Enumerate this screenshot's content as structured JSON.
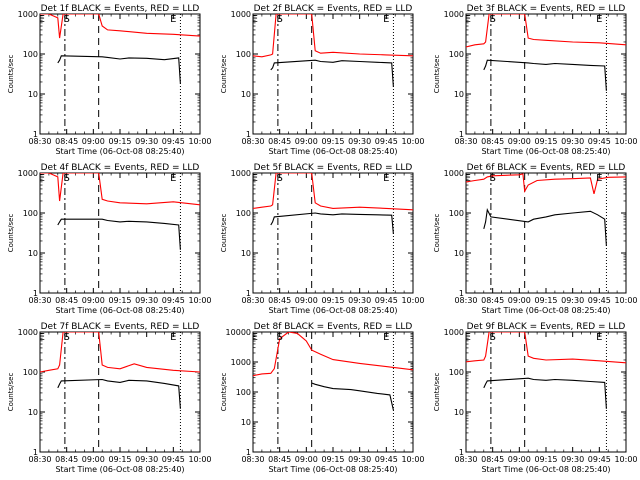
{
  "chart_data": [
    {
      "type": "line",
      "title": "Det 1f BLACK = Events, RED = LLD",
      "xlabel": "Start Time (06-Oct-08 08:25:40)",
      "ylabel": "Counts/sec",
      "yscale": "log",
      "ylim": [
        1,
        1000
      ],
      "xlim": [
        "08:30",
        "10:00"
      ],
      "x_ticks": [
        "08:30",
        "08:45",
        "09:00",
        "09:15",
        "09:30",
        "09:45",
        "10:00"
      ],
      "y_ticks": [
        "1",
        "10",
        "100",
        "1000"
      ],
      "markers": {
        "E1": "08:31",
        "S": "08:45",
        "E2": "09:45"
      },
      "saa_interval": [
        "08:44",
        "09:03"
      ],
      "end_time": "09:49",
      "series": [
        {
          "color": "#ff0000",
          "x": [
            "08:27",
            "08:30",
            "08:35",
            "08:40",
            "08:41",
            "08:43",
            "09:03",
            "09:05",
            "09:08",
            "09:15",
            "09:30",
            "09:45",
            "10:00"
          ],
          "y": [
            1000,
            1000,
            1000,
            800,
            250,
            1000,
            1000,
            500,
            400,
            380,
            330,
            310,
            280
          ]
        },
        {
          "color": "#000000",
          "x": [
            "08:40",
            "08:41",
            "08:42",
            "09:05",
            "09:08",
            "09:15",
            "09:20",
            "09:30",
            "09:40",
            "09:48",
            "09:49"
          ],
          "y": [
            60,
            70,
            90,
            85,
            82,
            75,
            80,
            78,
            72,
            80,
            18
          ]
        }
      ]
    },
    {
      "type": "line",
      "title": "Det 2f BLACK = Events, RED = LLD",
      "xlabel": "Start Time (06-Oct-08 08:25:40)",
      "ylabel": "Counts/sec",
      "yscale": "log",
      "ylim": [
        1,
        1000
      ],
      "xlim": [
        "08:30",
        "10:00"
      ],
      "x_ticks": [
        "08:30",
        "08:45",
        "09:00",
        "09:15",
        "09:30",
        "09:45",
        "10:00"
      ],
      "y_ticks": [
        "1",
        "10",
        "100",
        "1000"
      ],
      "markers": {
        "E1": "08:31",
        "S": "08:45",
        "E2": "09:45"
      },
      "saa_interval": [
        "08:44",
        "09:03"
      ],
      "end_time": "09:49",
      "series": [
        {
          "color": "#ff0000",
          "x": [
            "08:27",
            "08:30",
            "08:35",
            "08:40",
            "08:41",
            "08:43",
            "09:03",
            "09:05",
            "09:08",
            "09:15",
            "09:30",
            "09:45",
            "10:00"
          ],
          "y": [
            90,
            90,
            85,
            95,
            100,
            1000,
            1000,
            120,
            105,
            110,
            100,
            95,
            90
          ]
        },
        {
          "color": "#000000",
          "x": [
            "08:40",
            "08:41",
            "08:42",
            "09:05",
            "09:08",
            "09:15",
            "09:20",
            "09:30",
            "09:40",
            "09:48",
            "09:49"
          ],
          "y": [
            40,
            45,
            60,
            70,
            65,
            62,
            68,
            65,
            62,
            60,
            15
          ]
        }
      ]
    },
    {
      "type": "line",
      "title": "Det 3f BLACK = Events, RED = LLD",
      "xlabel": "Start Time (06-Oct-08 08:25:40)",
      "ylabel": "Counts/sec",
      "yscale": "log",
      "ylim": [
        1,
        1000
      ],
      "xlim": [
        "08:30",
        "10:00"
      ],
      "x_ticks": [
        "08:30",
        "08:45",
        "09:00",
        "09:15",
        "09:30",
        "09:45",
        "10:00"
      ],
      "y_ticks": [
        "1",
        "10",
        "100",
        "1000"
      ],
      "markers": {
        "E1": "08:31",
        "S": "08:45",
        "E2": "09:45"
      },
      "saa_interval": [
        "08:44",
        "09:03"
      ],
      "end_time": "09:49",
      "series": [
        {
          "color": "#ff0000",
          "x": [
            "08:27",
            "08:30",
            "08:35",
            "08:40",
            "08:41",
            "08:43",
            "09:03",
            "09:05",
            "09:08",
            "09:15",
            "09:30",
            "09:45",
            "10:00"
          ],
          "y": [
            150,
            150,
            170,
            180,
            200,
            1000,
            1000,
            250,
            230,
            220,
            200,
            190,
            170
          ]
        },
        {
          "color": "#000000",
          "x": [
            "08:40",
            "08:41",
            "08:42",
            "09:05",
            "09:08",
            "09:15",
            "09:20",
            "09:30",
            "09:40",
            "09:48",
            "09:49"
          ],
          "y": [
            40,
            50,
            70,
            60,
            58,
            55,
            58,
            55,
            52,
            50,
            12
          ]
        }
      ]
    },
    {
      "type": "line",
      "title": "Det 4f BLACK = Events, RED = LLD",
      "xlabel": "Start Time (06-Oct-08 08:25:40)",
      "ylabel": "Counts/sec",
      "yscale": "log",
      "ylim": [
        1,
        1000
      ],
      "xlim": [
        "08:30",
        "10:00"
      ],
      "x_ticks": [
        "08:30",
        "08:45",
        "09:00",
        "09:15",
        "09:30",
        "09:45",
        "10:00"
      ],
      "y_ticks": [
        "1",
        "10",
        "100",
        "1000"
      ],
      "markers": {
        "E1": "08:31",
        "S": "08:45",
        "E2": "09:45"
      },
      "saa_interval": [
        "08:44",
        "09:03"
      ],
      "end_time": "09:49",
      "series": [
        {
          "color": "#ff0000",
          "x": [
            "08:27",
            "08:30",
            "08:35",
            "08:40",
            "08:41",
            "08:43",
            "09:03",
            "09:05",
            "09:08",
            "09:15",
            "09:30",
            "09:45",
            "10:00"
          ],
          "y": [
            1000,
            1000,
            1000,
            800,
            200,
            1000,
            1000,
            220,
            200,
            180,
            170,
            190,
            160
          ]
        },
        {
          "color": "#000000",
          "x": [
            "08:40",
            "08:41",
            "08:42",
            "09:05",
            "09:08",
            "09:15",
            "09:20",
            "09:30",
            "09:40",
            "09:48",
            "09:49"
          ],
          "y": [
            50,
            60,
            70,
            70,
            65,
            60,
            62,
            60,
            55,
            50,
            12
          ]
        }
      ]
    },
    {
      "type": "line",
      "title": "Det 5f BLACK = Events, RED = LLD",
      "xlabel": "Start Time (06-Oct-08 08:25:40)",
      "ylabel": "Counts/sec",
      "yscale": "log",
      "ylim": [
        1,
        1000
      ],
      "xlim": [
        "08:30",
        "10:00"
      ],
      "x_ticks": [
        "08:30",
        "08:45",
        "09:00",
        "09:15",
        "09:30",
        "09:45",
        "10:00"
      ],
      "y_ticks": [
        "1",
        "10",
        "100",
        "1000"
      ],
      "markers": {
        "E1": "08:31",
        "S": "08:45",
        "E2": "09:45"
      },
      "saa_interval": [
        "08:44",
        "09:03"
      ],
      "end_time": "09:49",
      "series": [
        {
          "color": "#ff0000",
          "x": [
            "08:27",
            "08:30",
            "08:35",
            "08:40",
            "08:41",
            "08:43",
            "09:03",
            "09:05",
            "09:08",
            "09:15",
            "09:30",
            "09:45",
            "10:00"
          ],
          "y": [
            130,
            130,
            140,
            150,
            160,
            1000,
            1000,
            180,
            150,
            130,
            140,
            130,
            120
          ]
        },
        {
          "color": "#000000",
          "x": [
            "08:40",
            "08:41",
            "08:42",
            "09:05",
            "09:08",
            "09:15",
            "09:20",
            "09:30",
            "09:40",
            "09:48",
            "09:49"
          ],
          "y": [
            50,
            60,
            80,
            100,
            95,
            90,
            95,
            92,
            90,
            88,
            30
          ]
        }
      ]
    },
    {
      "type": "line",
      "title": "Det 6f BLACK = Events, RED = LLD",
      "xlabel": "Start Time (06-Oct-08 08:25:40)",
      "ylabel": "Counts/sec",
      "yscale": "log",
      "ylim": [
        1,
        1000
      ],
      "xlim": [
        "08:30",
        "10:00"
      ],
      "x_ticks": [
        "08:30",
        "08:45",
        "09:00",
        "09:15",
        "09:30",
        "09:45",
        "10:00"
      ],
      "y_ticks": [
        "1",
        "10",
        "100",
        "1000"
      ],
      "markers": {
        "E1": "08:31",
        "S": "08:45",
        "E2": "09:45"
      },
      "saa_interval": [
        "08:44",
        "09:03"
      ],
      "end_time": "09:49",
      "series": [
        {
          "color": "#ff0000",
          "x": [
            "08:27",
            "08:30",
            "08:35",
            "08:40",
            "08:42",
            "08:45",
            "09:00",
            "09:02",
            "09:03",
            "09:05",
            "09:10",
            "09:20",
            "09:30",
            "09:40",
            "09:42",
            "09:44",
            "09:50",
            "10:00"
          ],
          "y": [
            600,
            600,
            650,
            700,
            800,
            850,
            900,
            950,
            350,
            500,
            650,
            700,
            720,
            750,
            300,
            700,
            780,
            800
          ]
        },
        {
          "color": "#000000",
          "x": [
            "08:40",
            "08:41",
            "08:42",
            "08:44",
            "09:05",
            "09:08",
            "09:15",
            "09:20",
            "09:30",
            "09:40",
            "09:44",
            "09:48",
            "09:49"
          ],
          "y": [
            40,
            60,
            120,
            80,
            60,
            70,
            80,
            90,
            100,
            110,
            90,
            70,
            15
          ]
        }
      ]
    },
    {
      "type": "line",
      "title": "Det 7f BLACK = Events, RED = LLD",
      "xlabel": "Start Time (06-Oct-08 08:25:40)",
      "ylabel": "Counts/sec",
      "yscale": "log",
      "ylim": [
        1,
        1000
      ],
      "xlim": [
        "08:30",
        "10:00"
      ],
      "x_ticks": [
        "08:30",
        "08:45",
        "09:00",
        "09:15",
        "09:30",
        "09:45",
        "10:00"
      ],
      "y_ticks": [
        "1",
        "10",
        "100",
        "1000"
      ],
      "markers": {
        "E1": "08:31",
        "S": "08:45",
        "E2": "09:45"
      },
      "saa_interval": [
        "08:44",
        "09:03"
      ],
      "end_time": "09:49",
      "series": [
        {
          "color": "#ff0000",
          "x": [
            "08:27",
            "08:30",
            "08:35",
            "08:40",
            "08:41",
            "08:43",
            "09:03",
            "09:05",
            "09:08",
            "09:15",
            "09:23",
            "09:30",
            "09:45",
            "10:00"
          ],
          "y": [
            100,
            100,
            110,
            120,
            150,
            1000,
            1000,
            150,
            130,
            120,
            160,
            130,
            110,
            100
          ]
        },
        {
          "color": "#000000",
          "x": [
            "08:40",
            "08:41",
            "08:42",
            "09:05",
            "09:08",
            "09:15",
            "09:20",
            "09:30",
            "09:40",
            "09:48",
            "09:49"
          ],
          "y": [
            40,
            50,
            60,
            65,
            60,
            55,
            62,
            60,
            52,
            45,
            12
          ]
        }
      ]
    },
    {
      "type": "line",
      "title": "Det 8f BLACK = Events, RED = LLD",
      "xlabel": "Start Time (06-Oct-08 08:25:40)",
      "ylabel": "Counts/sec",
      "yscale": "log",
      "ylim": [
        1,
        10000
      ],
      "xlim": [
        "08:30",
        "10:00"
      ],
      "x_ticks": [
        "08:30",
        "08:45",
        "09:00",
        "09:15",
        "09:30",
        "09:45",
        "10:00"
      ],
      "y_ticks": [
        "1",
        "10",
        "100",
        "1000",
        "10000"
      ],
      "markers": {
        "E1": "08:31",
        "S": "08:45",
        "E2": "09:45"
      },
      "saa_interval": [
        "08:44",
        "09:03"
      ],
      "end_time": "09:49",
      "series": [
        {
          "color": "#ff0000",
          "x": [
            "08:27",
            "08:30",
            "08:35",
            "08:40",
            "08:42",
            "08:45",
            "08:50",
            "08:55",
            "09:00",
            "09:03",
            "09:08",
            "09:15",
            "09:30",
            "09:45",
            "10:00"
          ],
          "y": [
            350,
            350,
            400,
            420,
            600,
            6000,
            10000,
            9000,
            5000,
            2500,
            1800,
            1200,
            900,
            700,
            550
          ]
        },
        {
          "color": "#000000",
          "x": [
            "09:03",
            "09:05",
            "09:10",
            "09:15",
            "09:25",
            "09:30",
            "09:40",
            "09:47",
            "09:49"
          ],
          "y": [
            200,
            180,
            150,
            130,
            120,
            110,
            90,
            80,
            25
          ]
        }
      ]
    },
    {
      "type": "line",
      "title": "Det 9f BLACK = Events, RED = LLD",
      "xlabel": "Start Time (06-Oct-08 08:25:40)",
      "ylabel": "Counts/sec",
      "yscale": "log",
      "ylim": [
        1,
        1000
      ],
      "xlim": [
        "08:30",
        "10:00"
      ],
      "x_ticks": [
        "08:30",
        "08:45",
        "09:00",
        "09:15",
        "09:30",
        "09:45",
        "10:00"
      ],
      "y_ticks": [
        "1",
        "10",
        "100",
        "1000"
      ],
      "markers": {
        "E1": "08:31",
        "S": "08:45",
        "E2": "09:45"
      },
      "saa_interval": [
        "08:44",
        "09:03"
      ],
      "end_time": "09:49",
      "series": [
        {
          "color": "#ff0000",
          "x": [
            "08:27",
            "08:30",
            "08:35",
            "08:40",
            "08:41",
            "08:43",
            "09:03",
            "09:05",
            "09:08",
            "09:15",
            "09:30",
            "09:45",
            "10:00"
          ],
          "y": [
            180,
            180,
            190,
            200,
            250,
            1000,
            1000,
            250,
            220,
            200,
            210,
            190,
            170
          ]
        },
        {
          "color": "#000000",
          "x": [
            "08:40",
            "08:41",
            "08:42",
            "09:05",
            "09:08",
            "09:15",
            "09:20",
            "09:30",
            "09:40",
            "09:48",
            "09:49"
          ],
          "y": [
            40,
            50,
            60,
            70,
            65,
            62,
            65,
            62,
            58,
            55,
            12
          ]
        }
      ]
    }
  ]
}
